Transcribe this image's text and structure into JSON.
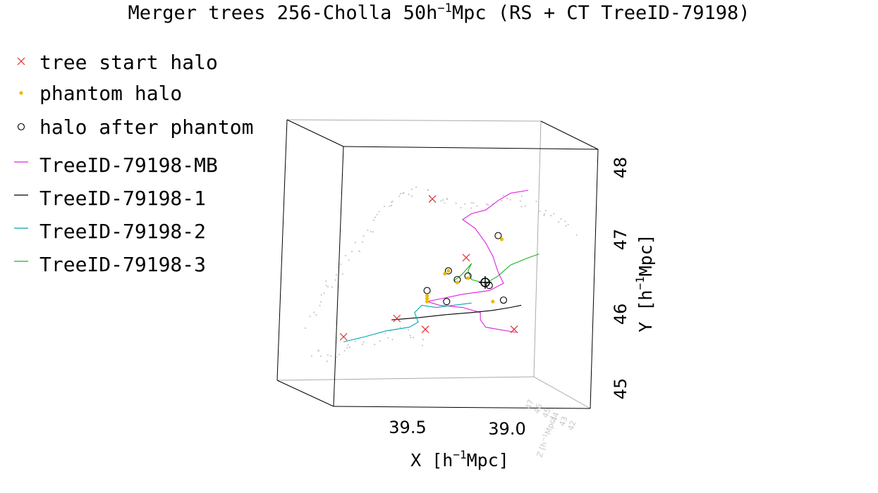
{
  "title": {
    "prefix": "Merger trees 256-Cholla 50h",
    "sup": "−1",
    "suffix": "Mpc (RS + CT TreeID-79198)"
  },
  "legend": [
    {
      "label": "tree start halo",
      "marker": "x-icon",
      "color": "#e03030"
    },
    {
      "label": "phantom halo",
      "marker": "dot-icon",
      "color": "#f0b800"
    },
    {
      "label": "halo after phantom",
      "marker": "circle-icon",
      "color": "#000000"
    },
    {
      "label": "TreeID-79198-MB",
      "marker": "line-icon",
      "color": "#e020e0"
    },
    {
      "label": "TreeID-79198-1",
      "marker": "line-icon",
      "color": "#000000"
    },
    {
      "label": "TreeID-79198-2",
      "marker": "line-icon",
      "color": "#00a8b0"
    },
    {
      "label": "TreeID-79198-3",
      "marker": "line-icon",
      "color": "#20b020"
    }
  ],
  "chart_data": {
    "type": "scatter",
    "projection": "3d",
    "xlabel": {
      "text": "X [h",
      "sup": "−1",
      "suffix": "Mpc]"
    },
    "ylabel": {
      "text": "Y [h",
      "sup": "−1",
      "suffix": "Mpc]"
    },
    "zlabel": {
      "text": "Z [h",
      "sup": "−1",
      "suffix": "Mpc]"
    },
    "x_ticks": [
      "39.5",
      "39.0"
    ],
    "y_ticks": [
      "45",
      "46",
      "47",
      "48"
    ],
    "z_ticks": [
      "47",
      "46",
      "45",
      "44",
      "43",
      "42"
    ],
    "xlim": [
      39.95,
      38.7
    ],
    "ylim": [
      44.8,
      48.2
    ],
    "grid": false,
    "legend_position": "top-left",
    "series": [
      {
        "name": "TreeID-79198-MB",
        "color": "#e020e0",
        "points": [
          [
            38.88,
            47.72
          ],
          [
            38.98,
            47.68
          ],
          [
            39.05,
            47.58
          ],
          [
            39.12,
            47.45
          ],
          [
            39.2,
            47.4
          ],
          [
            39.25,
            47.32
          ],
          [
            39.18,
            47.2
          ],
          [
            39.12,
            47.0
          ],
          [
            39.08,
            46.82
          ],
          [
            39.05,
            46.6
          ],
          [
            39.02,
            46.45
          ],
          [
            39.1,
            46.35
          ],
          [
            39.25,
            46.3
          ],
          [
            39.35,
            46.25
          ],
          [
            39.45,
            46.2
          ],
          [
            39.38,
            46.15
          ],
          [
            39.25,
            46.12
          ],
          [
            39.15,
            46.05
          ],
          [
            39.15,
            45.95
          ],
          [
            39.12,
            45.85
          ],
          [
            39.05,
            45.82
          ],
          [
            38.95,
            45.78
          ]
        ]
      },
      {
        "name": "TreeID-79198-1",
        "color": "#000000",
        "points": [
          [
            39.65,
            45.95
          ],
          [
            39.5,
            45.98
          ],
          [
            39.35,
            46.02
          ],
          [
            39.2,
            46.05
          ],
          [
            39.08,
            46.08
          ],
          [
            38.98,
            46.12
          ],
          [
            38.92,
            46.15
          ]
        ]
      },
      {
        "name": "TreeID-79198-2",
        "color": "#00a8b0",
        "points": [
          [
            39.92,
            45.65
          ],
          [
            39.8,
            45.72
          ],
          [
            39.68,
            45.8
          ],
          [
            39.55,
            45.85
          ],
          [
            39.5,
            45.92
          ],
          [
            39.52,
            46.05
          ],
          [
            39.48,
            46.15
          ],
          [
            39.4,
            46.12
          ],
          [
            39.3,
            46.15
          ],
          [
            39.2,
            46.18
          ]
        ]
      },
      {
        "name": "TreeID-79198-3",
        "color": "#20b020",
        "points": [
          [
            38.82,
            46.85
          ],
          [
            38.9,
            46.78
          ],
          [
            38.98,
            46.7
          ],
          [
            39.05,
            46.55
          ],
          [
            39.12,
            46.45
          ],
          [
            39.2,
            46.5
          ],
          [
            39.22,
            46.62
          ],
          [
            39.2,
            46.72
          ],
          [
            39.25,
            46.58
          ],
          [
            39.3,
            46.48
          ]
        ]
      },
      {
        "name": "tree start halo",
        "color": "#e03030",
        "points": [
          [
            39.42,
            47.6
          ],
          [
            39.23,
            46.8
          ],
          [
            39.62,
            45.97
          ],
          [
            39.46,
            45.82
          ],
          [
            39.92,
            45.72
          ],
          [
            38.96,
            45.82
          ]
        ]
      },
      {
        "name": "halo after phantom",
        "color": "#000000",
        "points": [
          [
            39.05,
            47.1
          ],
          [
            39.45,
            46.35
          ],
          [
            39.28,
            46.5
          ],
          [
            39.22,
            46.55
          ],
          [
            39.33,
            46.62
          ],
          [
            39.34,
            46.2
          ],
          [
            39.02,
            46.22
          ],
          [
            39.1,
            46.42
          ]
        ]
      },
      {
        "name": "phantom halo",
        "color": "#f0b800",
        "points": [
          [
            39.03,
            47.05
          ],
          [
            39.45,
            46.28
          ],
          [
            39.45,
            46.24
          ],
          [
            39.45,
            46.2
          ],
          [
            39.28,
            46.46
          ],
          [
            39.22,
            46.52
          ],
          [
            39.35,
            46.58
          ],
          [
            39.33,
            46.62
          ],
          [
            39.08,
            46.2
          ]
        ]
      }
    ]
  }
}
